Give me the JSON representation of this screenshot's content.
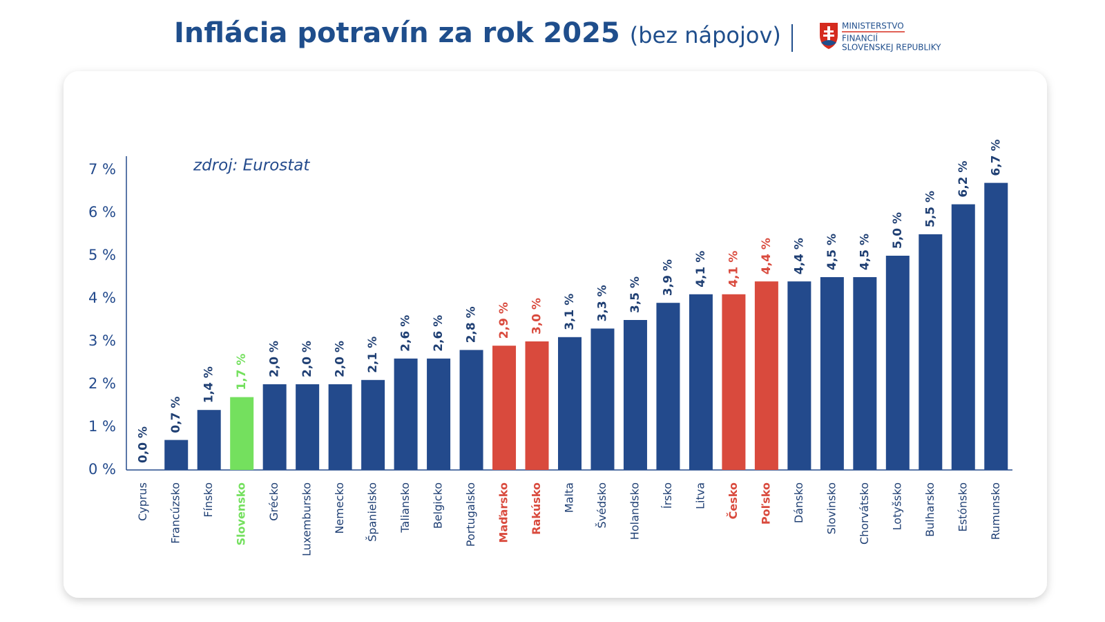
{
  "chart_data": {
    "type": "bar",
    "title": "Inflácia potravín za rok 2025",
    "subtitle": "(bez nápojov)",
    "annotation": "zdroj: Eurostat",
    "logo_lines": [
      "MINISTERSTVO",
      "FINANCIÍ",
      "SLOVENSKEJ REPUBLIKY"
    ],
    "categories": [
      "Cyprus",
      "Francúzsko",
      "Fínsko",
      "Slovensko",
      "Grécko",
      "Luxembursko",
      "Nemecko",
      "Španielsko",
      "Taliansko",
      "Belgicko",
      "Portugalsko",
      "Maďarsko",
      "Rakúsko",
      "Malta",
      "Švédsko",
      "Holandsko",
      "Írsko",
      "Litva",
      "Česko",
      "Poľsko",
      "Dánsko",
      "Slovinsko",
      "Chorvátsko",
      "Lotyšsko",
      "Bulharsko",
      "Estónsko",
      "Rumunsko"
    ],
    "values": [
      0.0,
      0.7,
      1.4,
      1.7,
      2.0,
      2.0,
      2.0,
      2.1,
      2.6,
      2.6,
      2.8,
      2.9,
      3.0,
      3.1,
      3.3,
      3.5,
      3.9,
      4.1,
      4.1,
      4.4,
      4.4,
      4.5,
      4.5,
      5.0,
      5.5,
      6.2,
      6.7
    ],
    "value_labels": [
      "0,0 %",
      "0,7 %",
      "1,4 %",
      "1,7 %",
      "2,0 %",
      "2,0 %",
      "2,0 %",
      "2,1 %",
      "2,6 %",
      "2,6 %",
      "2,8 %",
      "2,9 %",
      "3,0 %",
      "3,1 %",
      "3,3 %",
      "3,5 %",
      "3,9 %",
      "4,1 %",
      "4,1 %",
      "4,4 %",
      "4,4 %",
      "4,5 %",
      "4,5 %",
      "5,0 %",
      "5,5 %",
      "6,2 %",
      "6,7 %"
    ],
    "color": "#234a8c",
    "colors": [
      "#234a8c",
      "#234a8c",
      "#234a8c",
      "#74e05e",
      "#234a8c",
      "#234a8c",
      "#234a8c",
      "#234a8c",
      "#234a8c",
      "#234a8c",
      "#234a8c",
      "#d94a3d",
      "#d94a3d",
      "#234a8c",
      "#234a8c",
      "#234a8c",
      "#234a8c",
      "#234a8c",
      "#d94a3d",
      "#d94a3d",
      "#234a8c",
      "#234a8c",
      "#234a8c",
      "#234a8c",
      "#234a8c",
      "#234a8c",
      "#234a8c"
    ],
    "ylim": [
      0,
      7
    ],
    "yticks": [
      {
        "value": 0,
        "label": "0 %"
      },
      {
        "value": 1,
        "label": "1 %"
      },
      {
        "value": 2,
        "label": "2 %"
      },
      {
        "value": 3,
        "label": "3 %"
      },
      {
        "value": 4,
        "label": "4 %"
      },
      {
        "value": 5,
        "label": "5 %"
      },
      {
        "value": 6,
        "label": "6 %"
      },
      {
        "value": 7,
        "label": "7 %"
      }
    ],
    "grid": false
  }
}
